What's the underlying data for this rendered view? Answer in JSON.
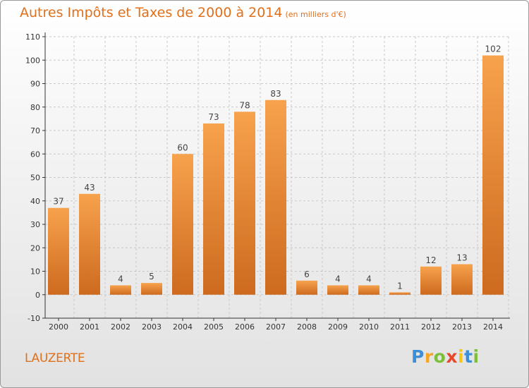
{
  "header": {
    "title": "Autres Impôts et Taxes de 2000 à 2014",
    "unit": "(en milliers d'€)"
  },
  "footer": {
    "city": "LAUZERTE",
    "logo": {
      "letters": [
        "P",
        "r",
        "o",
        "x",
        "i",
        "t",
        "i"
      ],
      "colors": [
        "#3a8fd8",
        "#f5a623",
        "#7cbf3a",
        "#e8472c",
        "#f5c518",
        "#3a8fd8",
        "#7cbf3a"
      ]
    }
  },
  "colors": {
    "bar_light": "#f7a24d",
    "bar_dark": "#cd6a1e",
    "text": "#e0701c",
    "axis": "#333333",
    "grid": "#c8c8c8"
  },
  "chart_data": {
    "type": "bar",
    "categories": [
      "2000",
      "2001",
      "2002",
      "2003",
      "2004",
      "2005",
      "2006",
      "2007",
      "2008",
      "2009",
      "2010",
      "2011",
      "2012",
      "2013",
      "2014"
    ],
    "values": [
      37,
      43,
      4,
      5,
      60,
      73,
      78,
      83,
      6,
      4,
      4,
      1,
      12,
      13,
      102
    ],
    "data_labels": [
      "37",
      "43",
      "4",
      "5",
      "60",
      "73",
      "78",
      "83",
      "6",
      "4",
      "4",
      "1",
      "12",
      "13",
      "102"
    ],
    "ylim": [
      -10,
      110
    ],
    "yticks": [
      -10,
      0,
      10,
      20,
      30,
      40,
      50,
      60,
      70,
      80,
      90,
      100,
      110
    ],
    "ytick_labels": [
      "-10",
      "0",
      "10",
      "20",
      "30",
      "40",
      "50",
      "60",
      "70",
      "80",
      "90",
      "100",
      "110"
    ],
    "grid": true
  }
}
